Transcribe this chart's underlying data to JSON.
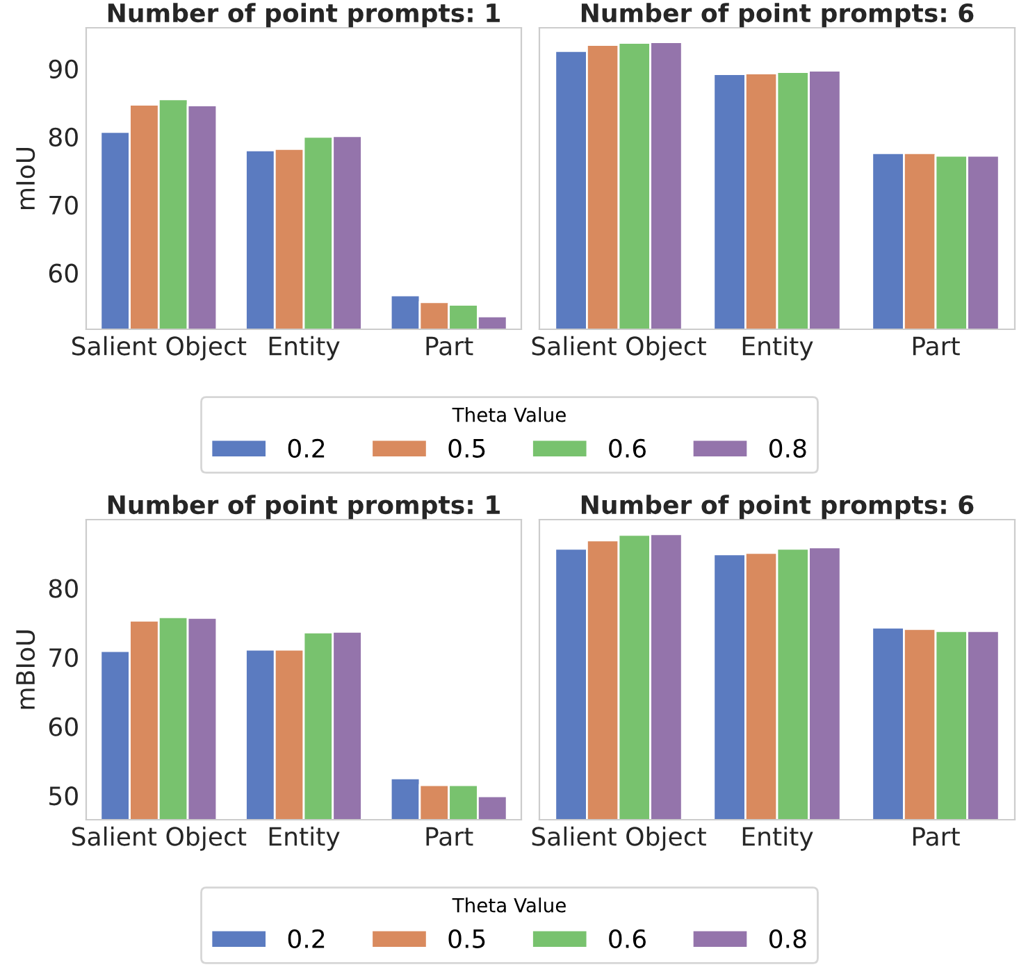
{
  "chart_data": [
    {
      "type": "bar",
      "title": "Number of point prompts: 1",
      "ylabel": "mIoU",
      "categories": [
        "Salient Object",
        "Entity",
        "Part"
      ],
      "ylim": [
        51.7,
        96
      ],
      "yticks": [
        60,
        70,
        80,
        90
      ],
      "legend": "bottom",
      "legend_title": "Theta Value",
      "grid": false,
      "series": [
        {
          "name": "0.2",
          "color": "#5b7bc0",
          "values": [
            80.7,
            78.0,
            56.7
          ]
        },
        {
          "name": "0.5",
          "color": "#d98a5e",
          "values": [
            84.7,
            78.2,
            55.7
          ]
        },
        {
          "name": "0.6",
          "color": "#78c26e",
          "values": [
            85.5,
            80.0,
            55.3
          ]
        },
        {
          "name": "0.8",
          "color": "#9474ab",
          "values": [
            84.6,
            80.1,
            53.6
          ]
        }
      ]
    },
    {
      "type": "bar",
      "title": "Number of point prompts: 6",
      "categories": [
        "Salient Object",
        "Entity",
        "Part"
      ],
      "ylim": [
        51.7,
        96
      ],
      "tick_labels": "x",
      "grid": false,
      "legend": "bottom",
      "series": [
        {
          "name": "0.2",
          "color": "#5b7bc0",
          "values": [
            92.6,
            89.2,
            77.6
          ]
        },
        {
          "name": "0.5",
          "color": "#d98a5e",
          "values": [
            93.5,
            89.3,
            77.6
          ]
        },
        {
          "name": "0.6",
          "color": "#78c26e",
          "values": [
            93.8,
            89.5,
            77.2
          ]
        },
        {
          "name": "0.8",
          "color": "#9474ab",
          "values": [
            93.9,
            89.7,
            77.2
          ]
        }
      ]
    },
    {
      "type": "bar",
      "title": "Number of point prompts: 1",
      "ylabel": "mBIoU",
      "categories": [
        "Salient Object",
        "Entity",
        "Part"
      ],
      "ylim": [
        46.5,
        89.9
      ],
      "yticks": [
        50,
        60,
        70,
        80
      ],
      "legend": "bottom",
      "legend_title": "Theta Value",
      "grid": false,
      "series": [
        {
          "name": "0.2",
          "color": "#5b7bc0",
          "values": [
            70.9,
            71.1,
            52.5
          ]
        },
        {
          "name": "0.5",
          "color": "#d98a5e",
          "values": [
            75.3,
            71.1,
            51.5
          ]
        },
        {
          "name": "0.6",
          "color": "#78c26e",
          "values": [
            75.8,
            73.6,
            51.5
          ]
        },
        {
          "name": "0.8",
          "color": "#9474ab",
          "values": [
            75.7,
            73.7,
            49.9
          ]
        }
      ]
    },
    {
      "type": "bar",
      "title": "Number of point prompts: 6",
      "categories": [
        "Salient Object",
        "Entity",
        "Part"
      ],
      "ylim": [
        46.5,
        89.9
      ],
      "tick_labels": "x",
      "grid": false,
      "legend": "bottom",
      "series": [
        {
          "name": "0.2",
          "color": "#5b7bc0",
          "values": [
            85.7,
            84.9,
            74.3
          ]
        },
        {
          "name": "0.5",
          "color": "#d98a5e",
          "values": [
            86.9,
            85.1,
            74.1
          ]
        },
        {
          "name": "0.6",
          "color": "#78c26e",
          "values": [
            87.7,
            85.7,
            73.8
          ]
        },
        {
          "name": "0.8",
          "color": "#9474ab",
          "values": [
            87.8,
            85.9,
            73.8
          ]
        }
      ]
    }
  ]
}
